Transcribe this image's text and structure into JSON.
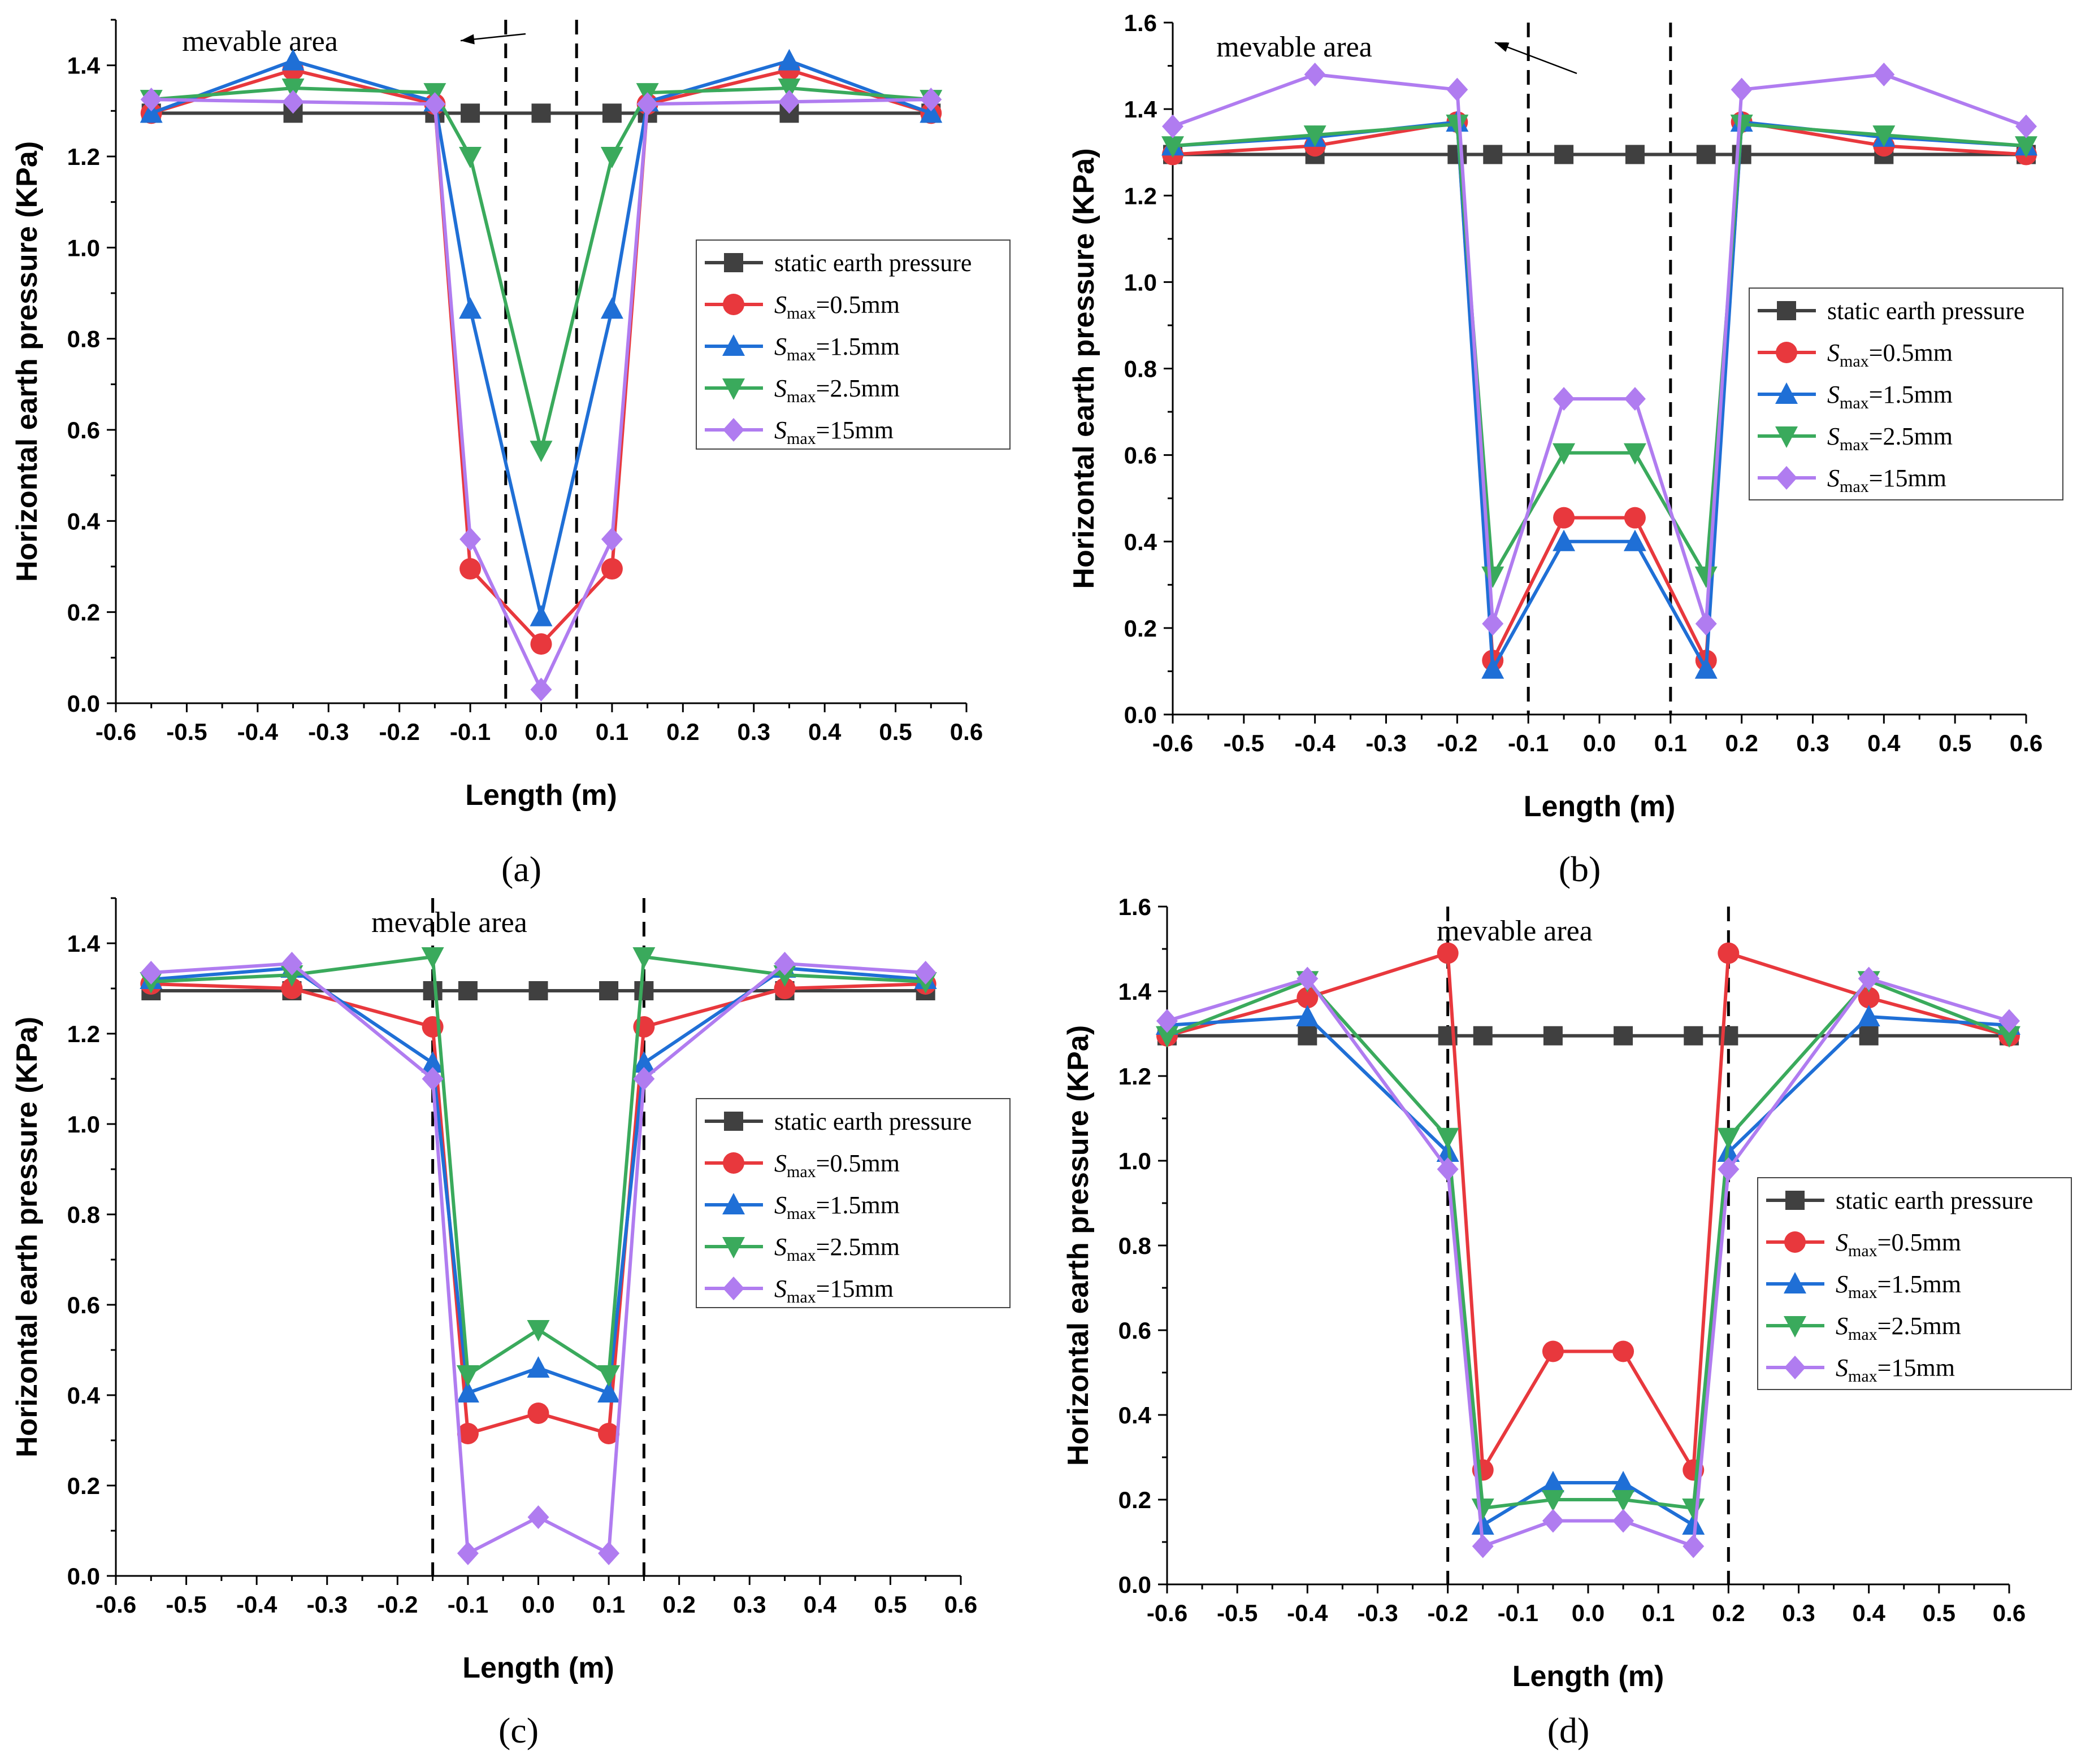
{
  "colors": {
    "static": "#404040",
    "s05": "#e8383d",
    "s15": "#1f6fd6",
    "s25": "#3aaa5c",
    "s15mm": "#b07cf0"
  },
  "chart_data": [
    {
      "type": "line",
      "panel_label": "(a)",
      "xlabel": "Length (m)",
      "ylabel": "Horizontal earth pressure (KPa)",
      "xlim": [
        -0.6,
        0.6
      ],
      "ylim": [
        0.0,
        1.5
      ],
      "xticks": [
        -0.6,
        -0.5,
        -0.4,
        -0.3,
        -0.2,
        -0.1,
        0.0,
        0.1,
        0.2,
        0.3,
        0.4,
        0.5,
        0.6
      ],
      "yticks": [
        0.0,
        0.2,
        0.4,
        0.6,
        0.8,
        1.0,
        1.2,
        1.4
      ],
      "annotation": "mevable area",
      "dashed_lines_x": [
        -0.05,
        0.05
      ],
      "legend_position": "center-right",
      "series": [
        {
          "name": "static earth pressure",
          "color_key": "static",
          "marker": "square",
          "x": [
            -0.55,
            -0.35,
            -0.15,
            -0.1,
            0.0,
            0.1,
            0.15,
            0.35,
            0.55
          ],
          "y": [
            1.295,
            1.295,
            1.295,
            1.295,
            1.295,
            1.295,
            1.295,
            1.295,
            1.295
          ]
        },
        {
          "name": "S_max=0.5mm",
          "color_key": "s05",
          "marker": "circle",
          "x": [
            -0.55,
            -0.35,
            -0.15,
            -0.1,
            0.0,
            0.1,
            0.15,
            0.35,
            0.55
          ],
          "y": [
            1.295,
            1.39,
            1.315,
            0.295,
            0.13,
            0.295,
            1.315,
            1.39,
            1.295
          ]
        },
        {
          "name": "S_max=1.5mm",
          "color_key": "s15",
          "marker": "triangle-up",
          "x": [
            -0.55,
            -0.35,
            -0.15,
            -0.1,
            0.0,
            0.1,
            0.15,
            0.35,
            0.55
          ],
          "y": [
            1.295,
            1.41,
            1.32,
            0.865,
            0.19,
            0.865,
            1.32,
            1.41,
            1.295
          ]
        },
        {
          "name": "S_max=2.5mm",
          "color_key": "s25",
          "marker": "triangle-down",
          "x": [
            -0.55,
            -0.35,
            -0.15,
            -0.1,
            0.0,
            0.1,
            0.15,
            0.35,
            0.55
          ],
          "y": [
            1.325,
            1.35,
            1.34,
            1.2,
            0.555,
            1.2,
            1.34,
            1.35,
            1.325
          ]
        },
        {
          "name": "S_max=15mm",
          "color_key": "s15mm",
          "marker": "diamond",
          "x": [
            -0.55,
            -0.35,
            -0.15,
            -0.1,
            0.0,
            0.1,
            0.15,
            0.35,
            0.55
          ],
          "y": [
            1.325,
            1.32,
            1.315,
            0.36,
            0.03,
            0.36,
            1.315,
            1.32,
            1.325
          ]
        }
      ]
    },
    {
      "type": "line",
      "panel_label": "(b)",
      "xlabel": "Length (m)",
      "ylabel": "Horizontal earth pressure (KPa)",
      "xlim": [
        -0.6,
        0.6
      ],
      "ylim": [
        0.0,
        1.6
      ],
      "xticks": [
        -0.6,
        -0.5,
        -0.4,
        -0.3,
        -0.2,
        -0.1,
        0.0,
        0.1,
        0.2,
        0.3,
        0.4,
        0.5,
        0.6
      ],
      "yticks": [
        0.0,
        0.2,
        0.4,
        0.6,
        0.8,
        1.0,
        1.2,
        1.4,
        1.6
      ],
      "annotation": "mevable area",
      "dashed_lines_x": [
        -0.1,
        0.1
      ],
      "legend_position": "center-right",
      "series": [
        {
          "name": "static earth pressure",
          "color_key": "static",
          "marker": "square",
          "x": [
            -0.6,
            -0.4,
            -0.2,
            -0.15,
            -0.05,
            0.05,
            0.15,
            0.2,
            0.4,
            0.6
          ],
          "y": [
            1.295,
            1.295,
            1.295,
            1.295,
            1.295,
            1.295,
            1.295,
            1.295,
            1.295,
            1.295
          ]
        },
        {
          "name": "S_max=0.5mm",
          "color_key": "s05",
          "marker": "circle",
          "x": [
            -0.6,
            -0.4,
            -0.2,
            -0.15,
            -0.05,
            0.05,
            0.15,
            0.2,
            0.4,
            0.6
          ],
          "y": [
            1.295,
            1.315,
            1.37,
            0.125,
            0.455,
            0.455,
            0.125,
            1.37,
            1.315,
            1.295
          ]
        },
        {
          "name": "S_max=1.5mm",
          "color_key": "s15",
          "marker": "triangle-up",
          "x": [
            -0.6,
            -0.4,
            -0.2,
            -0.15,
            -0.05,
            0.05,
            0.15,
            0.2,
            0.4,
            0.6
          ],
          "y": [
            1.315,
            1.335,
            1.37,
            0.105,
            0.4,
            0.4,
            0.105,
            1.37,
            1.335,
            1.315
          ]
        },
        {
          "name": "S_max=2.5mm",
          "color_key": "s25",
          "marker": "triangle-down",
          "x": [
            -0.6,
            -0.4,
            -0.2,
            -0.15,
            -0.05,
            0.05,
            0.15,
            0.2,
            0.4,
            0.6
          ],
          "y": [
            1.315,
            1.34,
            1.365,
            0.32,
            0.605,
            0.605,
            0.32,
            1.365,
            1.34,
            1.315
          ]
        },
        {
          "name": "S_max=15mm",
          "color_key": "s15mm",
          "marker": "diamond",
          "x": [
            -0.6,
            -0.4,
            -0.2,
            -0.15,
            -0.05,
            0.05,
            0.15,
            0.2,
            0.4,
            0.6
          ],
          "y": [
            1.36,
            1.48,
            1.445,
            0.21,
            0.73,
            0.73,
            0.21,
            1.445,
            1.48,
            1.36
          ]
        }
      ]
    },
    {
      "type": "line",
      "panel_label": "(c)",
      "xlabel": "Length (m)",
      "ylabel": "Horizontal earth pressure (KPa)",
      "xlim": [
        -0.6,
        0.6
      ],
      "ylim": [
        0.0,
        1.5
      ],
      "xticks": [
        -0.6,
        -0.5,
        -0.4,
        -0.3,
        -0.2,
        -0.1,
        0.0,
        0.1,
        0.2,
        0.3,
        0.4,
        0.5,
        0.6
      ],
      "yticks": [
        0.0,
        0.2,
        0.4,
        0.6,
        0.8,
        1.0,
        1.2,
        1.4
      ],
      "annotation": "mevable area",
      "dashed_lines_x": [
        -0.15,
        0.15
      ],
      "legend_position": "center-right",
      "series": [
        {
          "name": "static earth pressure",
          "color_key": "static",
          "marker": "square",
          "x": [
            -0.55,
            -0.35,
            -0.15,
            -0.1,
            0.0,
            0.1,
            0.15,
            0.35,
            0.55
          ],
          "y": [
            1.295,
            1.295,
            1.295,
            1.295,
            1.295,
            1.295,
            1.295,
            1.295,
            1.295
          ]
        },
        {
          "name": "S_max=0.5mm",
          "color_key": "s05",
          "marker": "circle",
          "x": [
            -0.55,
            -0.35,
            -0.15,
            -0.1,
            0.0,
            0.1,
            0.15,
            0.35,
            0.55
          ],
          "y": [
            1.31,
            1.3,
            1.215,
            0.315,
            0.36,
            0.315,
            1.215,
            1.3,
            1.31
          ]
        },
        {
          "name": "S_max=1.5mm",
          "color_key": "s15",
          "marker": "triangle-up",
          "x": [
            -0.55,
            -0.35,
            -0.15,
            -0.1,
            0.0,
            0.1,
            0.15,
            0.35,
            0.55
          ],
          "y": [
            1.32,
            1.345,
            1.135,
            0.405,
            0.46,
            0.405,
            1.135,
            1.345,
            1.32
          ]
        },
        {
          "name": "S_max=2.5mm",
          "color_key": "s25",
          "marker": "triangle-down",
          "x": [
            -0.55,
            -0.35,
            -0.15,
            -0.1,
            0.0,
            0.1,
            0.15,
            0.35,
            0.55
          ],
          "y": [
            1.315,
            1.33,
            1.37,
            0.445,
            0.545,
            0.445,
            1.37,
            1.33,
            1.315
          ]
        },
        {
          "name": "S_max=15mm",
          "color_key": "s15mm",
          "marker": "diamond",
          "x": [
            -0.55,
            -0.35,
            -0.15,
            -0.1,
            0.0,
            0.1,
            0.15,
            0.35,
            0.55
          ],
          "y": [
            1.335,
            1.355,
            1.1,
            0.05,
            0.13,
            0.05,
            1.1,
            1.355,
            1.335
          ]
        }
      ]
    },
    {
      "type": "line",
      "panel_label": "(d)",
      "xlabel": "Length (m)",
      "ylabel": "Horizontal earth pressure (KPa)",
      "xlim": [
        -0.6,
        0.6
      ],
      "ylim": [
        0.0,
        1.6
      ],
      "xticks": [
        -0.6,
        -0.5,
        -0.4,
        -0.3,
        -0.2,
        -0.1,
        0.0,
        0.1,
        0.2,
        0.3,
        0.4,
        0.5,
        0.6
      ],
      "yticks": [
        0.0,
        0.2,
        0.4,
        0.6,
        0.8,
        1.0,
        1.2,
        1.4,
        1.6
      ],
      "annotation": "mevable area",
      "dashed_lines_x": [
        -0.2,
        0.2
      ],
      "legend_position": "center-right",
      "series": [
        {
          "name": "static earth pressure",
          "color_key": "static",
          "marker": "square",
          "x": [
            -0.6,
            -0.4,
            -0.2,
            -0.15,
            -0.05,
            0.05,
            0.15,
            0.2,
            0.4,
            0.6
          ],
          "y": [
            1.295,
            1.295,
            1.295,
            1.295,
            1.295,
            1.295,
            1.295,
            1.295,
            1.295,
            1.295
          ]
        },
        {
          "name": "S_max=0.5mm",
          "color_key": "s05",
          "marker": "circle",
          "x": [
            -0.6,
            -0.4,
            -0.2,
            -0.15,
            -0.05,
            0.05,
            0.15,
            0.2,
            0.4,
            0.6
          ],
          "y": [
            1.295,
            1.385,
            1.49,
            0.27,
            0.55,
            0.55,
            0.27,
            1.49,
            1.385,
            1.295
          ]
        },
        {
          "name": "S_max=1.5mm",
          "color_key": "s15",
          "marker": "triangle-up",
          "x": [
            -0.6,
            -0.4,
            -0.2,
            -0.15,
            -0.05,
            0.05,
            0.15,
            0.2,
            0.4,
            0.6
          ],
          "y": [
            1.32,
            1.34,
            1.02,
            0.14,
            0.24,
            0.24,
            0.14,
            1.02,
            1.34,
            1.32
          ]
        },
        {
          "name": "S_max=2.5mm",
          "color_key": "s25",
          "marker": "triangle-down",
          "x": [
            -0.6,
            -0.4,
            -0.2,
            -0.15,
            -0.05,
            0.05,
            0.15,
            0.2,
            0.4,
            0.6
          ],
          "y": [
            1.295,
            1.425,
            1.055,
            0.18,
            0.2,
            0.2,
            0.18,
            1.055,
            1.425,
            1.295
          ]
        },
        {
          "name": "S_max=15mm",
          "color_key": "s15mm",
          "marker": "diamond",
          "x": [
            -0.6,
            -0.4,
            -0.2,
            -0.15,
            -0.05,
            0.05,
            0.15,
            0.2,
            0.4,
            0.6
          ],
          "y": [
            1.33,
            1.43,
            0.98,
            0.09,
            0.15,
            0.15,
            0.09,
            0.98,
            1.43,
            1.33
          ]
        }
      ]
    }
  ]
}
